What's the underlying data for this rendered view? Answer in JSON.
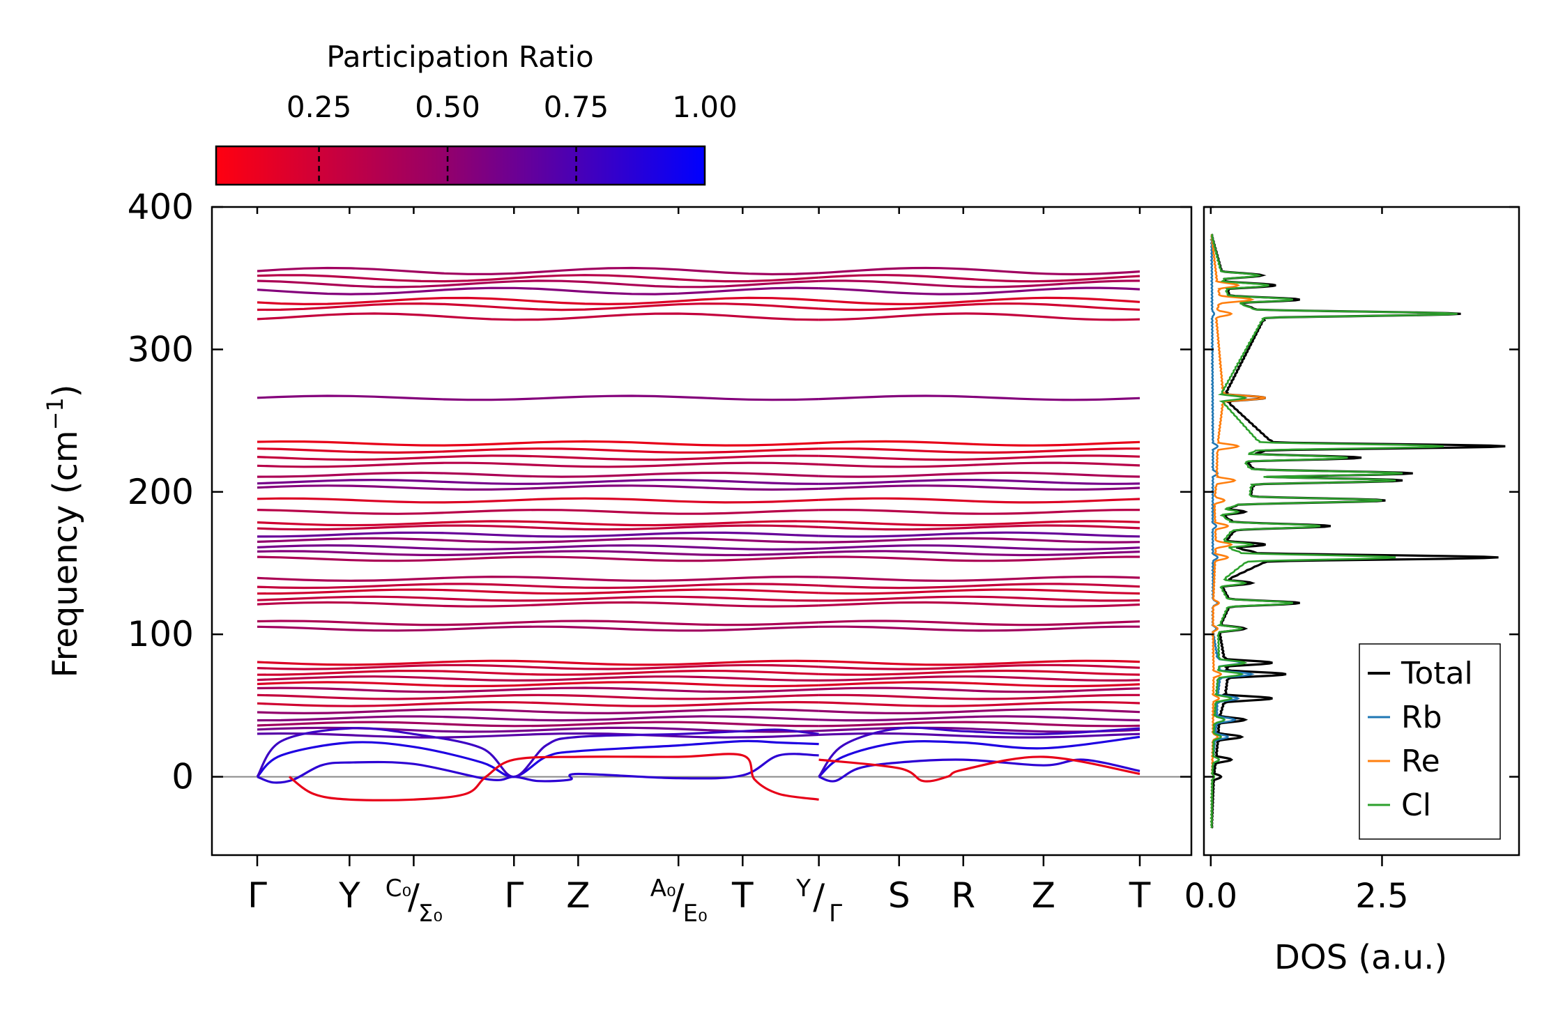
{
  "chart_data": {
    "type": "line",
    "colorbar": {
      "title": "Participation Ratio",
      "min": 0.05,
      "max": 1.0,
      "ticks": [
        0.25,
        0.5,
        0.75,
        1.0
      ],
      "tick_labels": [
        "0.25",
        "0.50",
        "0.75",
        "1.00"
      ],
      "color_low": "#ff0000",
      "color_mid": "#990066",
      "color_high": "#0000ff"
    },
    "band_structure": {
      "ylabel": "Frequency (cm",
      "ylabel_sup": "−1",
      "ylabel_close": ")",
      "ylim": [
        -55,
        400
      ],
      "y_ticks": [
        0,
        100,
        200,
        300,
        400
      ],
      "y_tick_labels": [
        "0",
        "100",
        "200",
        "300",
        "400"
      ],
      "zero_line": 0,
      "path_segments": [
        [
          0,
          9
        ],
        [
          9,
          16
        ]
      ],
      "kpoint_ticks": [
        {
          "pos": 0,
          "label": "Γ"
        },
        {
          "pos": 1.15,
          "label": "Y"
        },
        {
          "pos": 1.95,
          "label_top": "C₀",
          "label_bottom": "Σ₀"
        },
        {
          "pos": 3.2,
          "label": "Γ"
        },
        {
          "pos": 4.0,
          "label": "Z"
        },
        {
          "pos": 5.25,
          "label_top": "A₀",
          "label_bottom": "E₀"
        },
        {
          "pos": 6.05,
          "label": "T"
        },
        {
          "pos": 7.0,
          "label_top": "Y",
          "label_bottom": "Γ"
        },
        {
          "pos": 8.0,
          "label": "S"
        },
        {
          "pos": 8.8,
          "label": "R"
        },
        {
          "pos": 9.8,
          "label": "Z"
        },
        {
          "pos": 11.0,
          "label": "T"
        }
      ],
      "flat_bands": [
        {
          "freq": 355,
          "pr": 0.45
        },
        {
          "freq": 350,
          "pr": 0.35
        },
        {
          "freq": 346,
          "pr": 0.4
        },
        {
          "freq": 341,
          "pr": 0.55
        },
        {
          "freq": 334,
          "pr": 0.2
        },
        {
          "freq": 330,
          "pr": 0.25
        },
        {
          "freq": 323,
          "pr": 0.3
        },
        {
          "freq": 266,
          "pr": 0.55
        },
        {
          "freq": 234,
          "pr": 0.15
        },
        {
          "freq": 229,
          "pr": 0.2
        },
        {
          "freq": 224,
          "pr": 0.3
        },
        {
          "freq": 219,
          "pr": 0.35
        },
        {
          "freq": 212,
          "pr": 0.4
        },
        {
          "freq": 207,
          "pr": 0.6
        },
        {
          "freq": 203,
          "pr": 0.55
        },
        {
          "freq": 194,
          "pr": 0.2
        },
        {
          "freq": 186,
          "pr": 0.35
        },
        {
          "freq": 178,
          "pr": 0.25
        },
        {
          "freq": 175,
          "pr": 0.3
        },
        {
          "freq": 170,
          "pr": 0.65
        },
        {
          "freq": 166,
          "pr": 0.5
        },
        {
          "freq": 161,
          "pr": 0.6
        },
        {
          "freq": 157,
          "pr": 0.55
        },
        {
          "freq": 153,
          "pr": 0.4
        },
        {
          "freq": 139,
          "pr": 0.4
        },
        {
          "freq": 134,
          "pr": 0.3
        },
        {
          "freq": 130,
          "pr": 0.25
        },
        {
          "freq": 125,
          "pr": 0.3
        },
        {
          "freq": 121,
          "pr": 0.35
        },
        {
          "freq": 108,
          "pr": 0.4
        },
        {
          "freq": 104,
          "pr": 0.45
        },
        {
          "freq": 80,
          "pr": 0.2
        },
        {
          "freq": 77,
          "pr": 0.3
        },
        {
          "freq": 73,
          "pr": 0.25
        },
        {
          "freq": 69,
          "pr": 0.35
        },
        {
          "freq": 65,
          "pr": 0.2
        },
        {
          "freq": 61,
          "pr": 0.45
        },
        {
          "freq": 56,
          "pr": 0.3
        },
        {
          "freq": 51,
          "pr": 0.25
        },
        {
          "freq": 46,
          "pr": 0.5
        },
        {
          "freq": 41,
          "pr": 0.55
        },
        {
          "freq": 37,
          "pr": 0.45
        },
        {
          "freq": 33,
          "pr": 0.6
        },
        {
          "freq": 29,
          "pr": 0.7
        }
      ],
      "acoustic_bands": [
        {
          "pr": 0.9,
          "points": [
            [
              0,
              0
            ],
            [
              0.3,
              15
            ],
            [
              1.15,
              24
            ],
            [
              1.95,
              21
            ],
            [
              2.8,
              10
            ],
            [
              3.2,
              0
            ],
            [
              3.6,
              14
            ],
            [
              4.0,
              18
            ],
            [
              5.25,
              22
            ],
            [
              6.05,
              25
            ],
            [
              6.5,
              24
            ],
            [
              7.0,
              23
            ]
          ]
        },
        {
          "pr": 0.8,
          "points": [
            [
              0,
              0
            ],
            [
              0.3,
              25
            ],
            [
              1.15,
              34
            ],
            [
              1.95,
              30
            ],
            [
              2.8,
              20
            ],
            [
              3.2,
              0
            ],
            [
              3.6,
              22
            ],
            [
              4.0,
              28
            ],
            [
              5.25,
              30
            ],
            [
              6.05,
              32
            ],
            [
              6.5,
              33
            ],
            [
              7.0,
              30
            ]
          ]
        },
        {
          "pr": 0.85,
          "points": [
            [
              0,
              0
            ],
            [
              0.2,
              -4
            ],
            [
              0.45,
              -2
            ],
            [
              0.8,
              8
            ],
            [
              1.15,
              10
            ],
            [
              1.95,
              9
            ],
            [
              2.9,
              -2
            ],
            [
              3.2,
              0
            ],
            [
              3.5,
              -3
            ],
            [
              3.9,
              -2
            ],
            [
              4.0,
              2
            ],
            [
              5.25,
              -1
            ],
            [
              6.05,
              1
            ],
            [
              6.5,
              15
            ],
            [
              7.0,
              15
            ]
          ]
        },
        {
          "pr": 0.15,
          "points": [
            [
              0.4,
              0
            ],
            [
              0.7,
              -12
            ],
            [
              1.15,
              -16
            ],
            [
              1.95,
              -16
            ],
            [
              2.6,
              -12
            ],
            [
              2.85,
              0
            ],
            [
              3.2,
              12
            ],
            [
              4.0,
              14
            ],
            [
              5.25,
              14
            ],
            [
              6.05,
              15
            ],
            [
              6.2,
              -2
            ],
            [
              6.5,
              -12
            ],
            [
              7.0,
              -16
            ]
          ]
        },
        {
          "pr": 0.9,
          "points": [
            [
              7.0,
              0
            ],
            [
              7.3,
              14
            ],
            [
              8.0,
              24
            ],
            [
              8.8,
              24
            ],
            [
              9.8,
              20
            ],
            [
              11.0,
              28
            ]
          ]
        },
        {
          "pr": 0.8,
          "points": [
            [
              7.0,
              0
            ],
            [
              7.3,
              22
            ],
            [
              8.0,
              34
            ],
            [
              8.8,
              32
            ],
            [
              9.8,
              30
            ],
            [
              11.0,
              34
            ]
          ]
        },
        {
          "pr": 0.85,
          "points": [
            [
              7.0,
              0
            ],
            [
              7.2,
              -3
            ],
            [
              7.5,
              6
            ],
            [
              8.0,
              10
            ],
            [
              8.8,
              12
            ],
            [
              9.8,
              8
            ],
            [
              10.3,
              12
            ],
            [
              11.0,
              4
            ]
          ]
        },
        {
          "pr": 0.15,
          "points": [
            [
              7.0,
              12
            ],
            [
              8.0,
              6
            ],
            [
              8.3,
              -3
            ],
            [
              8.6,
              0
            ],
            [
              8.8,
              5
            ],
            [
              9.8,
              14
            ],
            [
              11.0,
              2
            ]
          ]
        }
      ]
    },
    "dos": {
      "xlabel": "DOS (a.u.)",
      "xlim": [
        -0.1,
        4.5
      ],
      "x_ticks": [
        0.0,
        2.5
      ],
      "x_tick_labels": [
        "0.0",
        "2.5"
      ],
      "legend": [
        {
          "name": "Total",
          "color": "#000000"
        },
        {
          "name": "Rb",
          "color": "#1f77b4"
        },
        {
          "name": "Re",
          "color": "#ff7f0e"
        },
        {
          "name": "Cl",
          "color": "#2ca02c"
        }
      ],
      "peaks": {
        "Total": [
          [
            -35,
            0.02
          ],
          [
            0,
            0.15
          ],
          [
            12,
            0.3
          ],
          [
            28,
            0.45
          ],
          [
            40,
            0.5
          ],
          [
            55,
            0.9
          ],
          [
            72,
            1.1
          ],
          [
            80,
            0.9
          ],
          [
            104,
            0.5
          ],
          [
            122,
            1.3
          ],
          [
            136,
            0.6
          ],
          [
            154,
            4.2
          ],
          [
            163,
            0.8
          ],
          [
            176,
            1.75
          ],
          [
            186,
            0.5
          ],
          [
            194,
            2.55
          ],
          [
            208,
            2.8
          ],
          [
            213,
            2.95
          ],
          [
            224,
            2.2
          ],
          [
            232,
            4.3
          ],
          [
            266,
            0.8
          ],
          [
            325,
            3.65
          ],
          [
            335,
            1.3
          ],
          [
            345,
            0.95
          ],
          [
            352,
            0.75
          ],
          [
            380,
            0.02
          ]
        ],
        "Rb": [
          [
            -35,
            0.01
          ],
          [
            0,
            0.05
          ],
          [
            12,
            0.12
          ],
          [
            28,
            0.25
          ],
          [
            40,
            0.35
          ],
          [
            55,
            0.4
          ],
          [
            72,
            0.6
          ],
          [
            80,
            0.45
          ],
          [
            104,
            0.08
          ],
          [
            122,
            0.1
          ],
          [
            154,
            0.1
          ],
          [
            176,
            0.08
          ],
          [
            213,
            0.1
          ],
          [
            232,
            0.1
          ],
          [
            325,
            0.05
          ],
          [
            380,
            0.01
          ]
        ],
        "Re": [
          [
            -35,
            0.01
          ],
          [
            0,
            0.05
          ],
          [
            28,
            0.1
          ],
          [
            55,
            0.12
          ],
          [
            72,
            0.15
          ],
          [
            104,
            0.1
          ],
          [
            122,
            0.12
          ],
          [
            154,
            0.25
          ],
          [
            163,
            0.3
          ],
          [
            176,
            0.25
          ],
          [
            194,
            0.2
          ],
          [
            208,
            0.35
          ],
          [
            232,
            0.4
          ],
          [
            266,
            0.8
          ],
          [
            325,
            0.3
          ],
          [
            335,
            0.6
          ],
          [
            345,
            0.4
          ],
          [
            380,
            0.01
          ]
        ],
        "Cl": [
          [
            -35,
            0.01
          ],
          [
            0,
            0.05
          ],
          [
            12,
            0.12
          ],
          [
            28,
            0.15
          ],
          [
            40,
            0.2
          ],
          [
            55,
            0.3
          ],
          [
            72,
            0.45
          ],
          [
            80,
            0.5
          ],
          [
            104,
            0.45
          ],
          [
            122,
            1.2
          ],
          [
            136,
            0.5
          ],
          [
            154,
            2.7
          ],
          [
            163,
            0.6
          ],
          [
            176,
            1.6
          ],
          [
            186,
            0.4
          ],
          [
            194,
            2.5
          ],
          [
            208,
            2.7
          ],
          [
            213,
            2.8
          ],
          [
            224,
            2.0
          ],
          [
            232,
            3.4
          ],
          [
            266,
            0.5
          ],
          [
            325,
            3.6
          ],
          [
            335,
            1.2
          ],
          [
            345,
            0.85
          ],
          [
            352,
            0.7
          ],
          [
            380,
            0.02
          ]
        ]
      }
    }
  }
}
